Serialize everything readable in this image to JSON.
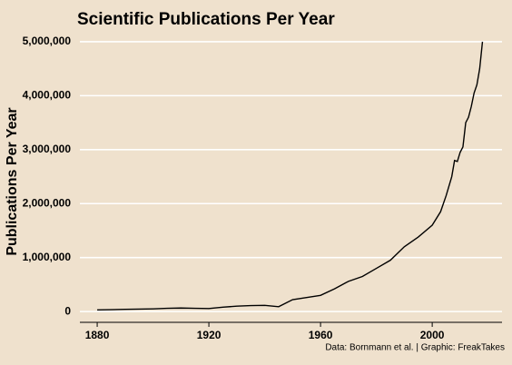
{
  "chart_data": {
    "type": "line",
    "title": "Scientific Publications Per Year",
    "y_label": "Publications Per Year",
    "source": "Data: Bornmann et al. | Graphic: FreakTakes",
    "x": [
      1880,
      1885,
      1890,
      1895,
      1900,
      1905,
      1910,
      1915,
      1920,
      1925,
      1930,
      1935,
      1940,
      1945,
      1950,
      1955,
      1960,
      1965,
      1970,
      1975,
      1980,
      1985,
      1990,
      1995,
      2000,
      2003,
      2005,
      2007,
      2008,
      2009,
      2010,
      2011,
      2012,
      2013,
      2014,
      2015,
      2016,
      2017,
      2018
    ],
    "series": [
      {
        "name": "Publications",
        "color": "#000000",
        "values": [
          30000,
          35000,
          40000,
          45000,
          50000,
          60000,
          65000,
          60000,
          55000,
          80000,
          100000,
          110000,
          115000,
          90000,
          220000,
          260000,
          300000,
          420000,
          560000,
          650000,
          800000,
          950000,
          1200000,
          1380000,
          1600000,
          1850000,
          2150000,
          2500000,
          2800000,
          2780000,
          2950000,
          3050000,
          3500000,
          3600000,
          3800000,
          4050000,
          4200000,
          4500000,
          5000000
        ]
      }
    ],
    "xlim": [
      1873.8,
      2025
    ],
    "ylim": [
      -200000,
      5100000
    ],
    "xticks": [
      1880,
      1920,
      1960,
      2000
    ],
    "yticks": [
      0,
      {
        "value": 1000000,
        "label": "1,000,000"
      },
      {
        "value": 2000000,
        "label": "2,000,000"
      },
      {
        "value": 3000000,
        "label": "3,000,000"
      },
      {
        "value": 4000000,
        "label": "4,000,000"
      },
      {
        "value": 5000000,
        "label": "5,000,000"
      }
    ],
    "grid": true
  }
}
